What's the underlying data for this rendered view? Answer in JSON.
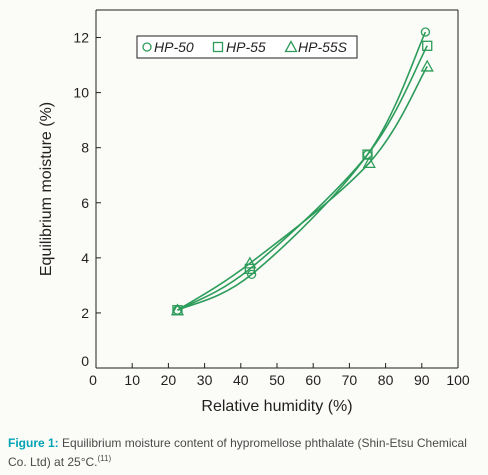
{
  "chart_data": {
    "type": "line",
    "xlabel": "Relative humidity (%)",
    "ylabel": "Equilibrium moisture (%)",
    "xlim": [
      0,
      100
    ],
    "ylim": [
      0,
      13
    ],
    "xticks": [
      "0",
      "10",
      "20",
      "30",
      "40",
      "50",
      "60",
      "70",
      "80",
      "90",
      "100"
    ],
    "yticks": [
      "0",
      "2",
      "4",
      "6",
      "8",
      "10",
      "12"
    ],
    "legend_position": "top-left",
    "line_color": "#2d9c5a",
    "series": [
      {
        "name": "HP-50",
        "marker": "circle",
        "x": [
          22.5,
          43,
          75,
          91
        ],
        "y": [
          2.1,
          3.4,
          7.75,
          12.2
        ]
      },
      {
        "name": "HP-55",
        "marker": "square",
        "x": [
          22.5,
          42.5,
          75,
          91.5
        ],
        "y": [
          2.1,
          3.6,
          7.75,
          11.7
        ]
      },
      {
        "name": "HP-55S",
        "marker": "triangle",
        "x": [
          22.5,
          42.5,
          75.5,
          91.5
        ],
        "y": [
          2.1,
          3.8,
          7.45,
          10.95
        ]
      }
    ]
  },
  "caption": {
    "label": "Figure 1:",
    "text": "Equilibrium moisture content of hypromellose phthalate (Shin-Etsu Chemical Co. Ltd) at 25°C.",
    "ref": "(11)"
  }
}
